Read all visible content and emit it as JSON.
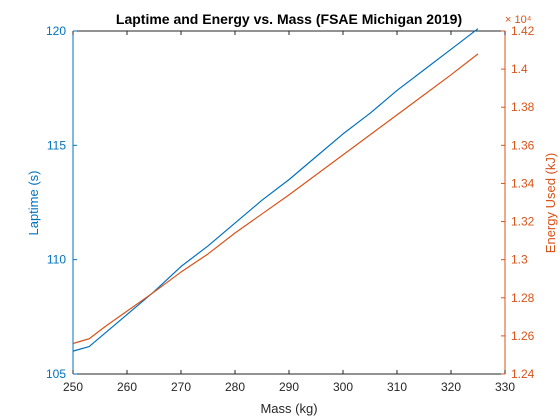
{
  "chart_data": {
    "type": "line",
    "title": "Laptime and Energy vs. Mass (FSAE Michigan 2019)",
    "xlabel": "Mass (kg)",
    "xlim": [
      250,
      330
    ],
    "x_ticks": [
      "250",
      "260",
      "270",
      "280",
      "290",
      "300",
      "310",
      "320",
      "330"
    ],
    "grid": false,
    "y_left": {
      "label": "Laptime (s)",
      "lim": [
        105,
        120
      ],
      "ticks": [
        "105",
        "110",
        "115",
        "120"
      ],
      "color": "#0072BD"
    },
    "y_right": {
      "label": "Energy Used (kJ)",
      "lim": [
        12400,
        14200
      ],
      "ticks": [
        "1.24",
        "1.26",
        "1.28",
        "1.3",
        "1.32",
        "1.34",
        "1.36",
        "1.38",
        "1.4",
        "1.42"
      ],
      "exponent_label": "× 10⁴",
      "color": "#D95319"
    },
    "x": [
      250,
      253,
      256,
      260,
      265,
      270,
      275,
      280,
      285,
      290,
      295,
      300,
      305,
      310,
      315,
      320,
      325
    ],
    "series": [
      {
        "axis": "left",
        "color": "#0072BD",
        "values": [
          106.0,
          106.2,
          106.8,
          107.6,
          108.6,
          109.7,
          110.6,
          111.6,
          112.6,
          113.5,
          114.5,
          115.5,
          116.4,
          117.4,
          118.3,
          119.2,
          120.1
        ]
      },
      {
        "axis": "right",
        "color": "#D95319",
        "values": [
          12560,
          12585,
          12650,
          12730,
          12830,
          12935,
          13030,
          13140,
          13240,
          13340,
          13445,
          13550,
          13655,
          13760,
          13865,
          13970,
          14080
        ]
      }
    ]
  }
}
